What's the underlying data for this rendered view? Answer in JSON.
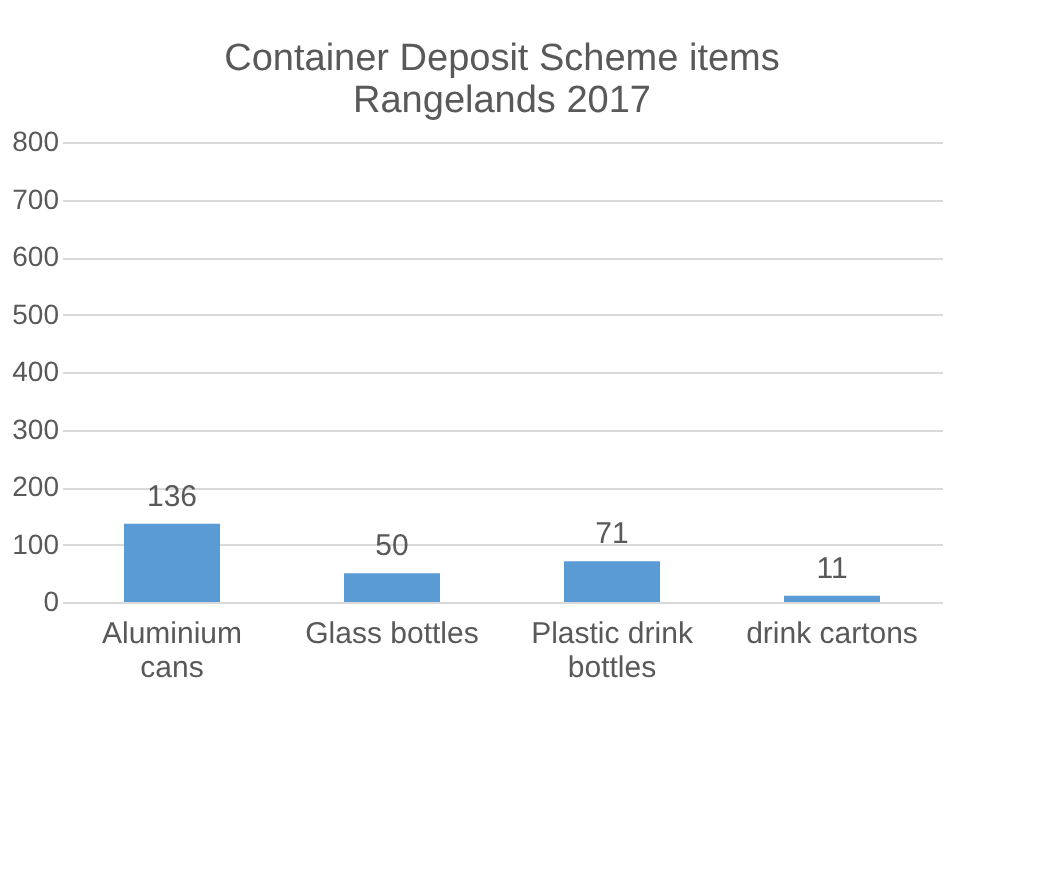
{
  "chart_data": {
    "type": "bar",
    "title": "Container Deposit Scheme items Rangelands 2017",
    "categories": [
      "Aluminium cans",
      "Glass bottles",
      "Plastic drink bottles",
      "drink cartons"
    ],
    "values": [
      136,
      50,
      71,
      11
    ],
    "color": "#5b9bd5",
    "ylim": [
      0,
      800
    ],
    "yticks": [
      0,
      100,
      200,
      300,
      400,
      500,
      600,
      700,
      800
    ],
    "grid": "y",
    "data_labels": true
  }
}
